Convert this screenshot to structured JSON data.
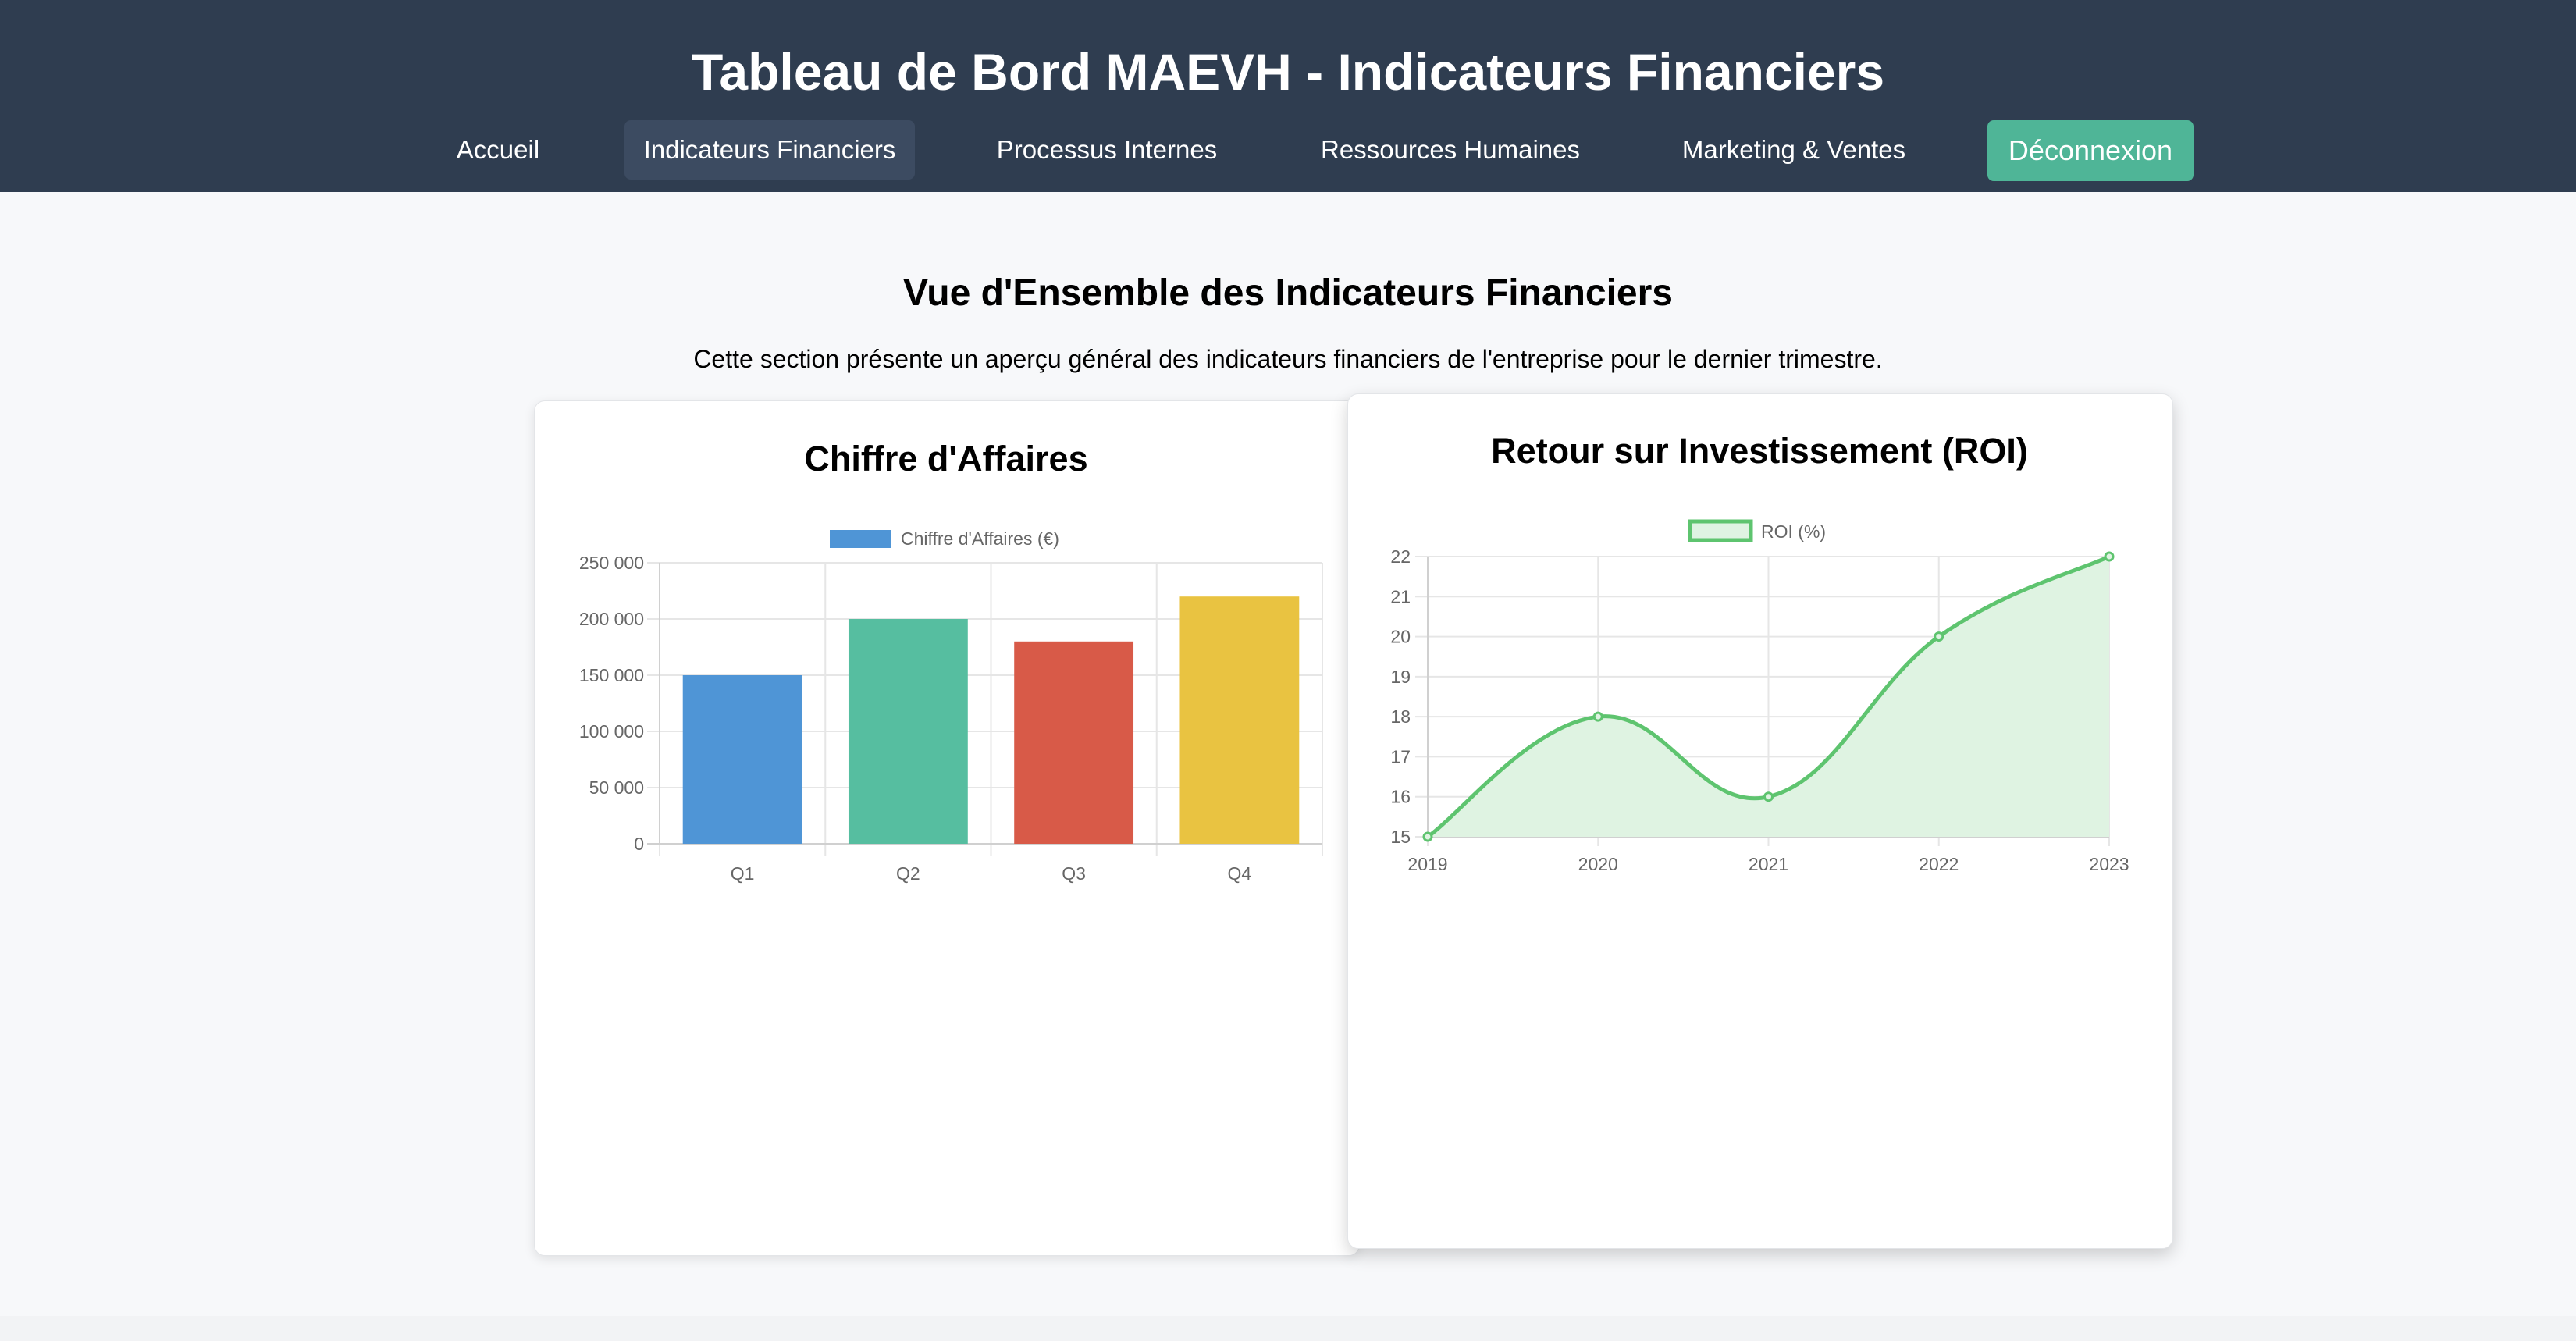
{
  "header": {
    "title": "Tableau de Bord MAEVH - Indicateurs Financiers",
    "nav": [
      {
        "label": "Accueil"
      },
      {
        "label": "Indicateurs Financiers"
      },
      {
        "label": "Processus Internes"
      },
      {
        "label": "Ressources Humaines"
      },
      {
        "label": "Marketing & Ventes"
      }
    ],
    "logout_label": "Déconnexion"
  },
  "main": {
    "section_title": "Vue d'Ensemble des Indicateurs Financiers",
    "section_description": "Cette section présente un aperçu général des indicateurs financiers de l'entreprise pour le dernier trimestre."
  },
  "colors": {
    "header_bg": "#2f3d50",
    "active_nav_bg": "#3c4b61",
    "logout_bg": "#4fb597",
    "roi_line": "#5ec46f"
  },
  "chart_data": [
    {
      "type": "bar",
      "title": "Chiffre d'Affaires",
      "categories": [
        "Q1",
        "Q2",
        "Q3",
        "Q4"
      ],
      "series": [
        {
          "name": "Chiffre d'Affaires (€)",
          "values": [
            150000,
            200000,
            180000,
            220000
          ]
        }
      ],
      "bar_colors": [
        "#4f95d6",
        "#56bea0",
        "#d85a48",
        "#e9c341"
      ],
      "ylim": [
        0,
        250000
      ],
      "yticks": [
        0,
        50000,
        100000,
        150000,
        200000,
        250000
      ],
      "ytick_labels": [
        "0",
        "50 000",
        "100 000",
        "150 000",
        "200 000",
        "250 000"
      ],
      "grid": true,
      "legend": "top-center"
    },
    {
      "type": "area",
      "title": "Retour sur Investissement (ROI)",
      "x": [
        "2019",
        "2020",
        "2021",
        "2022",
        "2023"
      ],
      "series": [
        {
          "name": "ROI (%)",
          "values": [
            15,
            18,
            16,
            20,
            22
          ]
        }
      ],
      "line_color": "#5ec46f",
      "fill_color": "#dff3e2",
      "ylim": [
        15,
        22
      ],
      "yticks": [
        15,
        16,
        17,
        18,
        19,
        20,
        21,
        22
      ],
      "grid": true,
      "legend": "top-center"
    }
  ]
}
